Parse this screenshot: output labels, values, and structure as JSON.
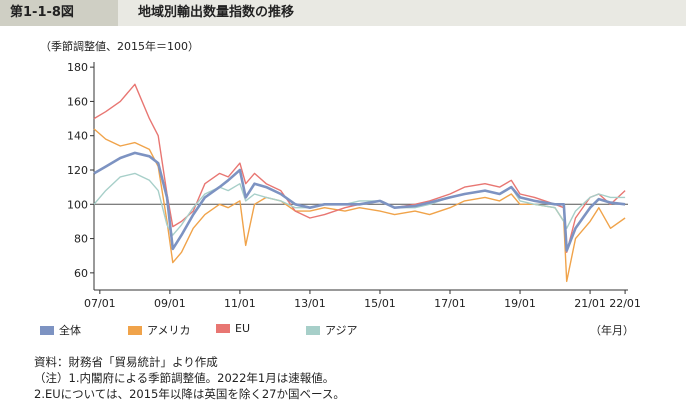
{
  "header": {
    "figure_no": "第1-1-8図",
    "title": "地域別輸出数量指数の推移"
  },
  "unit_note": "（季節調整値、2015年＝100）",
  "period_label": "（年月）",
  "notes": [
    "資料：財務省「貿易統計」より作成",
    "（注）1.内閣府による季節調整値。2022年1月は速報値。",
    "2.EUについては、2015年以降は英国を除く27か国ベース。"
  ],
  "chart_data": {
    "type": "line",
    "ylim": [
      50,
      183
    ],
    "yticks": [
      60,
      80,
      100,
      120,
      140,
      160,
      180
    ],
    "xlim": [
      "2006-11",
      "2022-02"
    ],
    "xticks": [
      "2007-01",
      "2009-01",
      "2011-01",
      "2013-01",
      "2015-01",
      "2017-01",
      "2019-01",
      "2021-01",
      "2022-01"
    ],
    "xtick_labels": [
      "07/01",
      "09/01",
      "11/01",
      "13/01",
      "15/01",
      "17/01",
      "19/01",
      "21/01",
      "22/01"
    ],
    "reference_line": 100,
    "grid": false,
    "series": [
      {
        "name": "全体",
        "color": "#7d93c2",
        "width": 2.6,
        "points": [
          [
            "2006-11",
            118
          ],
          [
            "2007-03",
            122
          ],
          [
            "2007-08",
            127
          ],
          [
            "2008-01",
            130
          ],
          [
            "2008-06",
            128
          ],
          [
            "2008-09",
            124
          ],
          [
            "2008-12",
            104
          ],
          [
            "2009-02",
            74
          ],
          [
            "2009-05",
            82
          ],
          [
            "2009-09",
            94
          ],
          [
            "2010-01",
            104
          ],
          [
            "2010-06",
            110
          ],
          [
            "2010-09",
            114
          ],
          [
            "2011-01",
            120
          ],
          [
            "2011-03",
            104
          ],
          [
            "2011-06",
            112
          ],
          [
            "2011-10",
            110
          ],
          [
            "2012-03",
            106
          ],
          [
            "2012-08",
            100
          ],
          [
            "2013-01",
            98
          ],
          [
            "2013-06",
            100
          ],
          [
            "2014-01",
            100
          ],
          [
            "2014-06",
            100
          ],
          [
            "2015-01",
            102
          ],
          [
            "2015-06",
            98
          ],
          [
            "2016-01",
            99
          ],
          [
            "2016-06",
            101
          ],
          [
            "2017-01",
            104
          ],
          [
            "2017-06",
            106
          ],
          [
            "2018-01",
            108
          ],
          [
            "2018-06",
            106
          ],
          [
            "2018-10",
            110
          ],
          [
            "2019-01",
            104
          ],
          [
            "2019-06",
            102
          ],
          [
            "2020-01",
            100
          ],
          [
            "2020-04",
            100
          ],
          [
            "2020-05",
            73
          ],
          [
            "2020-08",
            86
          ],
          [
            "2021-01",
            98
          ],
          [
            "2021-04",
            103
          ],
          [
            "2021-08",
            101
          ],
          [
            "2022-01",
            100
          ]
        ]
      },
      {
        "name": "アメリカ",
        "color": "#f0a34a",
        "width": 1.4,
        "points": [
          [
            "2006-11",
            144
          ],
          [
            "2007-03",
            138
          ],
          [
            "2007-08",
            134
          ],
          [
            "2008-01",
            136
          ],
          [
            "2008-06",
            132
          ],
          [
            "2008-09",
            122
          ],
          [
            "2008-12",
            90
          ],
          [
            "2009-02",
            66
          ],
          [
            "2009-05",
            72
          ],
          [
            "2009-09",
            86
          ],
          [
            "2010-01",
            94
          ],
          [
            "2010-06",
            100
          ],
          [
            "2010-09",
            98
          ],
          [
            "2011-01",
            102
          ],
          [
            "2011-03",
            76
          ],
          [
            "2011-06",
            100
          ],
          [
            "2011-10",
            104
          ],
          [
            "2012-03",
            102
          ],
          [
            "2012-08",
            96
          ],
          [
            "2013-01",
            96
          ],
          [
            "2013-06",
            98
          ],
          [
            "2014-01",
            96
          ],
          [
            "2014-06",
            98
          ],
          [
            "2015-01",
            96
          ],
          [
            "2015-06",
            94
          ],
          [
            "2016-01",
            96
          ],
          [
            "2016-06",
            94
          ],
          [
            "2017-01",
            98
          ],
          [
            "2017-06",
            102
          ],
          [
            "2018-01",
            104
          ],
          [
            "2018-06",
            102
          ],
          [
            "2018-10",
            106
          ],
          [
            "2019-01",
            100
          ],
          [
            "2019-06",
            100
          ],
          [
            "2020-01",
            98
          ],
          [
            "2020-04",
            90
          ],
          [
            "2020-05",
            55
          ],
          [
            "2020-08",
            80
          ],
          [
            "2021-01",
            90
          ],
          [
            "2021-04",
            98
          ],
          [
            "2021-08",
            86
          ],
          [
            "2022-01",
            92
          ]
        ]
      },
      {
        "name": "EU",
        "color": "#e87672",
        "width": 1.4,
        "points": [
          [
            "2006-11",
            150
          ],
          [
            "2007-03",
            154
          ],
          [
            "2007-08",
            160
          ],
          [
            "2008-01",
            170
          ],
          [
            "2008-06",
            150
          ],
          [
            "2008-09",
            140
          ],
          [
            "2008-12",
            106
          ],
          [
            "2009-02",
            87
          ],
          [
            "2009-05",
            90
          ],
          [
            "2009-09",
            96
          ],
          [
            "2010-01",
            112
          ],
          [
            "2010-06",
            118
          ],
          [
            "2010-09",
            116
          ],
          [
            "2011-01",
            124
          ],
          [
            "2011-03",
            112
          ],
          [
            "2011-06",
            118
          ],
          [
            "2011-10",
            112
          ],
          [
            "2012-03",
            108
          ],
          [
            "2012-08",
            96
          ],
          [
            "2013-01",
            92
          ],
          [
            "2013-06",
            94
          ],
          [
            "2014-01",
            98
          ],
          [
            "2014-06",
            100
          ],
          [
            "2015-01",
            102
          ],
          [
            "2015-06",
            98
          ],
          [
            "2016-01",
            100
          ],
          [
            "2016-06",
            102
          ],
          [
            "2017-01",
            106
          ],
          [
            "2017-06",
            110
          ],
          [
            "2018-01",
            112
          ],
          [
            "2018-06",
            110
          ],
          [
            "2018-10",
            114
          ],
          [
            "2019-01",
            106
          ],
          [
            "2019-06",
            104
          ],
          [
            "2020-01",
            100
          ],
          [
            "2020-04",
            98
          ],
          [
            "2020-05",
            72
          ],
          [
            "2020-08",
            92
          ],
          [
            "2021-01",
            104
          ],
          [
            "2021-04",
            106
          ],
          [
            "2021-08",
            100
          ],
          [
            "2022-01",
            108
          ]
        ]
      },
      {
        "name": "アジア",
        "color": "#a7cfc9",
        "width": 1.4,
        "points": [
          [
            "2006-11",
            100
          ],
          [
            "2007-03",
            108
          ],
          [
            "2007-08",
            116
          ],
          [
            "2008-01",
            118
          ],
          [
            "2008-06",
            114
          ],
          [
            "2008-09",
            108
          ],
          [
            "2008-12",
            88
          ],
          [
            "2009-02",
            82
          ],
          [
            "2009-05",
            88
          ],
          [
            "2009-09",
            98
          ],
          [
            "2010-01",
            106
          ],
          [
            "2010-06",
            110
          ],
          [
            "2010-09",
            108
          ],
          [
            "2011-01",
            112
          ],
          [
            "2011-03",
            102
          ],
          [
            "2011-06",
            106
          ],
          [
            "2011-10",
            104
          ],
          [
            "2012-03",
            102
          ],
          [
            "2012-08",
            98
          ],
          [
            "2013-01",
            98
          ],
          [
            "2013-06",
            100
          ],
          [
            "2014-01",
            100
          ],
          [
            "2014-06",
            102
          ],
          [
            "2015-01",
            102
          ],
          [
            "2015-06",
            98
          ],
          [
            "2016-01",
            98
          ],
          [
            "2016-06",
            100
          ],
          [
            "2017-01",
            104
          ],
          [
            "2017-06",
            106
          ],
          [
            "2018-01",
            108
          ],
          [
            "2018-06",
            106
          ],
          [
            "2018-10",
            110
          ],
          [
            "2019-01",
            102
          ],
          [
            "2019-06",
            100
          ],
          [
            "2020-01",
            98
          ],
          [
            "2020-04",
            90
          ],
          [
            "2020-05",
            86
          ],
          [
            "2020-08",
            96
          ],
          [
            "2021-01",
            104
          ],
          [
            "2021-04",
            106
          ],
          [
            "2021-08",
            104
          ],
          [
            "2022-01",
            104
          ]
        ]
      }
    ]
  }
}
